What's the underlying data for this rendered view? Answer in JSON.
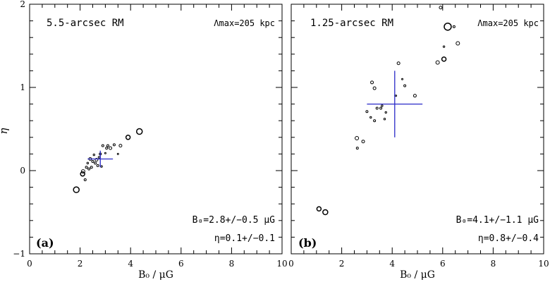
{
  "figure": {
    "ylabel": "η",
    "xlabel": "B₀ / μG"
  },
  "chart_data": [
    {
      "type": "scatter",
      "panel_label": "(a)",
      "title": "5.5-arcsec RM",
      "lambda_text": "Λmax=205 kpc",
      "b0_text": "B₀=2.8+/−0.5 μG",
      "eta_text": "η=0.1+/−0.1",
      "xlabel": "B₀ / μG",
      "ylabel": "η",
      "xlim": [
        0,
        10
      ],
      "ylim": [
        -1,
        2
      ],
      "xticks": [
        "0",
        "2",
        "4",
        "6",
        "8",
        "10"
      ],
      "yticks": [
        "−1",
        "0",
        "1",
        "2"
      ],
      "mean": {
        "x": 2.8,
        "y": 0.14
      },
      "errorbar": {
        "xerr": 0.5,
        "yerr": 0.1,
        "color": "#2929c8"
      },
      "points": [
        {
          "x": 1.85,
          "y": -0.23,
          "r": 4
        },
        {
          "x": 2.1,
          "y": -0.04,
          "r": 3
        },
        {
          "x": 2.12,
          "y": -0.01,
          "r": 2.5
        },
        {
          "x": 2.2,
          "y": -0.11,
          "r": 1.5
        },
        {
          "x": 2.25,
          "y": 0.04,
          "r": 1.5
        },
        {
          "x": 2.3,
          "y": 0.09,
          "r": 1.2
        },
        {
          "x": 2.35,
          "y": 0.02,
          "r": 1.5
        },
        {
          "x": 2.4,
          "y": 0.14,
          "r": 2
        },
        {
          "x": 2.45,
          "y": 0.04,
          "r": 1.5
        },
        {
          "x": 2.5,
          "y": 0.11,
          "r": 1.5
        },
        {
          "x": 2.55,
          "y": 0.19,
          "r": 1.2
        },
        {
          "x": 2.6,
          "y": 0.09,
          "r": 1.5
        },
        {
          "x": 2.65,
          "y": 0.13,
          "r": 2
        },
        {
          "x": 2.7,
          "y": 0.06,
          "r": 1.5
        },
        {
          "x": 2.75,
          "y": 0.16,
          "r": 1.2
        },
        {
          "x": 2.8,
          "y": 0.2,
          "r": 1.5
        },
        {
          "x": 2.85,
          "y": 0.05,
          "r": 1.2
        },
        {
          "x": 2.9,
          "y": 0.3,
          "r": 1.5
        },
        {
          "x": 3.0,
          "y": 0.21,
          "r": 1
        },
        {
          "x": 3.05,
          "y": 0.27,
          "r": 1.5
        },
        {
          "x": 3.1,
          "y": 0.3,
          "r": 1.5
        },
        {
          "x": 3.2,
          "y": 0.27,
          "r": 2
        },
        {
          "x": 3.35,
          "y": 0.31,
          "r": 1.5
        },
        {
          "x": 3.5,
          "y": 0.2,
          "r": 1
        },
        {
          "x": 3.6,
          "y": 0.3,
          "r": 2
        },
        {
          "x": 3.9,
          "y": 0.4,
          "r": 3
        },
        {
          "x": 4.35,
          "y": 0.47,
          "r": 4
        }
      ]
    },
    {
      "type": "scatter",
      "panel_label": "(b)",
      "title": "1.25-arcsec RM",
      "lambda_text": "Λmax=205 kpc",
      "b0_text": "B₀=4.1+/−1.1 μG",
      "eta_text": "η=0.8+/−0.4",
      "xlabel": "B₀ / μG",
      "ylabel": "η",
      "xlim": [
        0,
        10
      ],
      "ylim": [
        -1,
        2
      ],
      "xticks": [
        "0",
        "2",
        "4",
        "6",
        "8",
        "10"
      ],
      "yticks": [
        "−1",
        "0",
        "1",
        "2"
      ],
      "mean": {
        "x": 4.1,
        "y": 0.8
      },
      "errorbar": {
        "xerr": 1.1,
        "yerr": 0.4,
        "color": "#2929c8"
      },
      "points": [
        {
          "x": 1.1,
          "y": -0.46,
          "r": 3
        },
        {
          "x": 1.35,
          "y": -0.5,
          "r": 3.5
        },
        {
          "x": 2.6,
          "y": 0.39,
          "r": 2.5
        },
        {
          "x": 2.62,
          "y": 0.27,
          "r": 1.5
        },
        {
          "x": 2.85,
          "y": 0.35,
          "r": 2
        },
        {
          "x": 3.0,
          "y": 0.71,
          "r": 1.5
        },
        {
          "x": 3.15,
          "y": 0.64,
          "r": 1.2
        },
        {
          "x": 3.2,
          "y": 1.06,
          "r": 2
        },
        {
          "x": 3.3,
          "y": 0.99,
          "r": 2
        },
        {
          "x": 3.3,
          "y": 0.6,
          "r": 1.5
        },
        {
          "x": 3.4,
          "y": 0.75,
          "r": 1.5
        },
        {
          "x": 3.55,
          "y": 0.75,
          "r": 1.5
        },
        {
          "x": 3.6,
          "y": 0.78,
          "r": 1.2
        },
        {
          "x": 3.7,
          "y": 0.62,
          "r": 1.2
        },
        {
          "x": 3.75,
          "y": 0.7,
          "r": 1.2
        },
        {
          "x": 4.15,
          "y": 0.9,
          "r": 1
        },
        {
          "x": 4.25,
          "y": 1.29,
          "r": 2
        },
        {
          "x": 4.4,
          "y": 1.1,
          "r": 1
        },
        {
          "x": 4.5,
          "y": 1.02,
          "r": 1.5
        },
        {
          "x": 4.9,
          "y": 0.9,
          "r": 2
        },
        {
          "x": 5.8,
          "y": 1.3,
          "r": 2.5
        },
        {
          "x": 5.92,
          "y": 1.96,
          "r": 2
        },
        {
          "x": 6.05,
          "y": 1.34,
          "r": 3
        },
        {
          "x": 6.05,
          "y": 1.49,
          "r": 1.2
        },
        {
          "x": 6.2,
          "y": 1.73,
          "r": 5
        },
        {
          "x": 6.45,
          "y": 1.73,
          "r": 1.5
        },
        {
          "x": 6.6,
          "y": 1.53,
          "r": 2.5
        }
      ]
    }
  ]
}
